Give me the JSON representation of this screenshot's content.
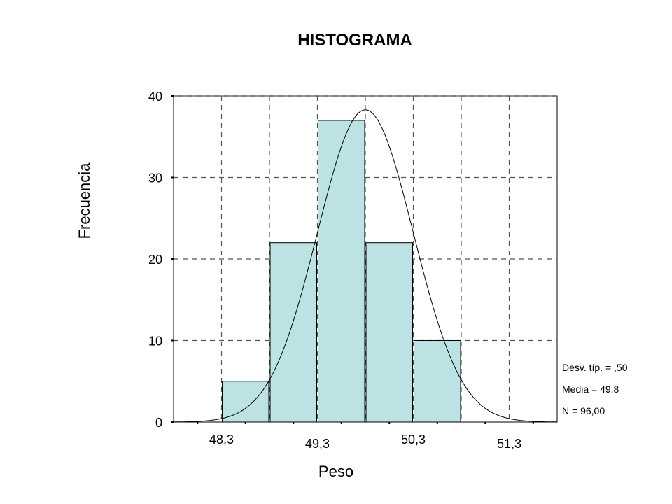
{
  "chart_data": {
    "type": "bar",
    "title": "HISTOGRAMA",
    "xlabel": "Peso",
    "ylabel": "Frecuencia",
    "ylim": [
      0,
      40
    ],
    "xlim": [
      47.8,
      51.8
    ],
    "y_ticks": [
      "0",
      "10",
      "20",
      "30",
      "40"
    ],
    "y_tick_values": [
      0,
      10,
      20,
      30,
      40
    ],
    "x_tick_labels": [
      "48,3",
      "49,3",
      "50,3",
      "51,3"
    ],
    "x_tick_values": [
      48.3,
      49.3,
      50.3,
      51.3
    ],
    "x_minor_tick_values": [
      48.05,
      48.55,
      49.05,
      49.55,
      50.05,
      50.55,
      51.05,
      51.55
    ],
    "bins": [
      {
        "from": 48.3,
        "to": 48.8,
        "value": 5
      },
      {
        "from": 48.8,
        "to": 49.3,
        "value": 22
      },
      {
        "from": 49.3,
        "to": 49.8,
        "value": 37
      },
      {
        "from": 49.8,
        "to": 50.3,
        "value": 22
      },
      {
        "from": 50.3,
        "to": 50.8,
        "value": 10
      }
    ],
    "bar_color": "#bde2e4",
    "grid": true,
    "normal_curve": {
      "mean": 49.8,
      "std": 0.5,
      "n": 96,
      "bin_width": 0.5
    },
    "stats": [
      "Desv. típ. = ,50",
      "Media = 49,8",
      "N = 96,00"
    ],
    "stats_position": "right"
  }
}
